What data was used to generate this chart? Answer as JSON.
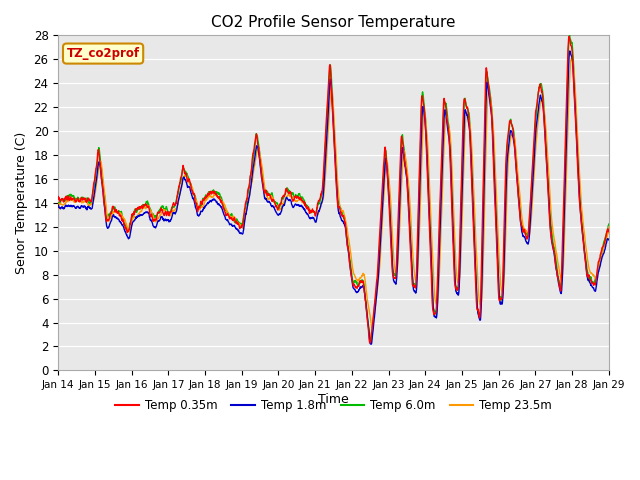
{
  "title": "CO2 Profile Sensor Temperature",
  "ylabel": "Senor Temperature (C)",
  "xlabel": "Time",
  "legend_label": "TZ_co2prof",
  "ylim": [
    0,
    28
  ],
  "yticks": [
    0,
    2,
    4,
    6,
    8,
    10,
    12,
    14,
    16,
    18,
    20,
    22,
    24,
    26,
    28
  ],
  "plot_bg": "#e8e8e8",
  "line_colors": {
    "T035": "#ff0000",
    "T18": "#0000cc",
    "T60": "#00bb00",
    "T235": "#ff9900"
  },
  "legend_entries": [
    {
      "label": "Temp 0.35m",
      "color": "#ff0000"
    },
    {
      "label": "Temp 1.8m",
      "color": "#0000cc"
    },
    {
      "label": "Temp 6.0m",
      "color": "#00bb00"
    },
    {
      "label": "Temp 23.5m",
      "color": "#ff9900"
    }
  ],
  "x_tick_labels": [
    "Jan 14",
    "Jan 15",
    "Jan 16",
    "Jan 17",
    "Jan 18",
    "Jan 19",
    "Jan 20",
    "Jan 21",
    "Jan 22",
    "Jan 23",
    "Jan 24",
    "Jan 25",
    "Jan 26",
    "Jan 27",
    "Jan 28",
    "Jan 29"
  ],
  "figsize": [
    6.4,
    4.8
  ],
  "dpi": 100
}
